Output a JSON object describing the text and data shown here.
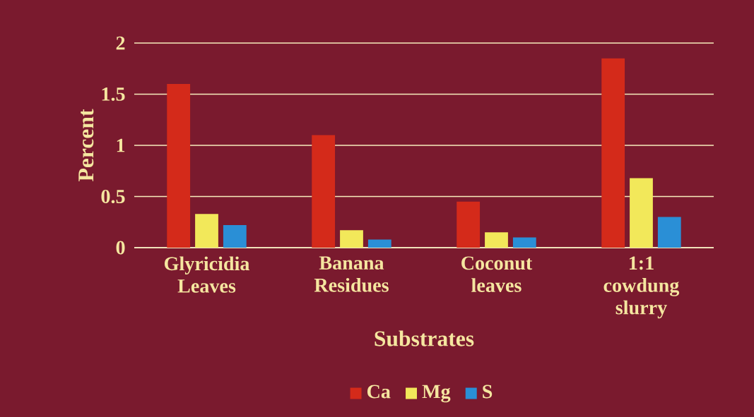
{
  "chart_data": {
    "type": "bar",
    "xlabel": "Substrates",
    "ylabel": "Percent",
    "categories": [
      "Glyricidia Leaves",
      "Banana Residues",
      "Coconut leaves",
      "1:1 cowdung slurry"
    ],
    "series": [
      {
        "name": "Ca",
        "color": "#d42a1a",
        "values": [
          1.6,
          1.1,
          0.45,
          1.85
        ]
      },
      {
        "name": "Mg",
        "color": "#f2e85a",
        "values": [
          0.33,
          0.17,
          0.15,
          0.68
        ]
      },
      {
        "name": "S",
        "color": "#2a8fd6",
        "values": [
          0.22,
          0.08,
          0.1,
          0.3
        ]
      }
    ],
    "ylim": [
      0,
      2
    ],
    "yticks": [
      0,
      0.5,
      1,
      1.5,
      2
    ],
    "grid": "y",
    "legend": "bottom"
  }
}
